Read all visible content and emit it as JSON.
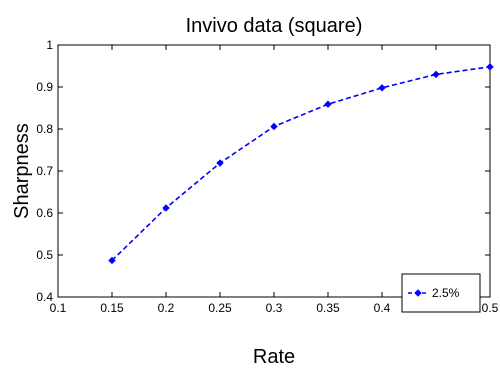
{
  "chart_data": {
    "type": "line",
    "title": "Invivo data (square)",
    "xlabel": "Rate",
    "ylabel": "Sharpness",
    "xlim": [
      0.1,
      0.5
    ],
    "ylim": [
      0.4,
      1.0
    ],
    "xticks": [
      "0.1",
      "0.15",
      "0.2",
      "0.25",
      "0.3",
      "0.35",
      "0.4",
      "0.45",
      "0.5"
    ],
    "yticks": [
      "0.4",
      "0.5",
      "0.6",
      "0.7",
      "0.8",
      "0.9",
      "1"
    ],
    "grid": false,
    "legend_position": "bottom-right",
    "series": [
      {
        "name": "2.5%",
        "color": "#0000ff",
        "line_style": "dashed",
        "marker": "diamond",
        "x": [
          0.15,
          0.2,
          0.25,
          0.3,
          0.35,
          0.4,
          0.45,
          0.5
        ],
        "y": [
          0.487,
          0.612,
          0.719,
          0.806,
          0.859,
          0.898,
          0.93,
          0.948
        ]
      }
    ]
  }
}
